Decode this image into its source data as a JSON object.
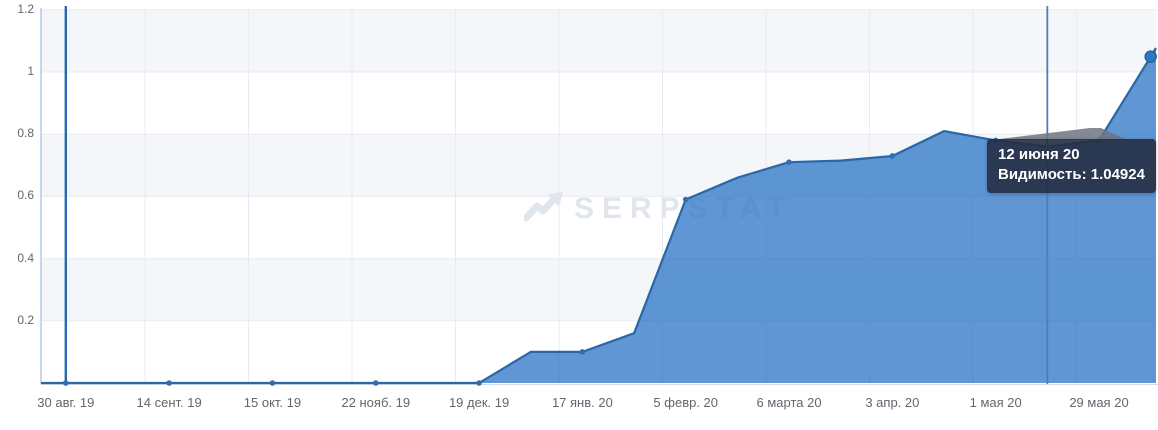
{
  "chart_data": {
    "type": "area",
    "title": "",
    "xlabel": "",
    "ylabel": "",
    "ylim": [
      0,
      1.2
    ],
    "y_tick_step": 0.2,
    "y_tick_labels": [
      "1.2",
      "1",
      "0.8",
      "0.6",
      "0.4",
      "0.2"
    ],
    "grid": true,
    "alternate_band_ranges": [
      [
        1.0,
        1.2
      ],
      [
        0.6,
        0.8
      ],
      [
        0.2,
        0.4
      ]
    ],
    "x_tick_labels": [
      "30 авг. 19",
      "14 сент. 19",
      "15 окт. 19",
      "22 нояб. 19",
      "19 дек. 19",
      "17 янв. 20",
      "5 февр. 20",
      "6 марта 20",
      "3 апр. 20",
      "1 мая 20",
      "29 мая 20"
    ],
    "series": [
      {
        "name": "Видимость",
        "values": [
          0,
          0,
          0,
          0,
          0,
          0,
          0,
          0,
          0,
          0.1,
          0.1,
          0.16,
          0.59,
          0.66,
          0.71,
          0.715,
          0.73,
          0.81,
          0.78,
          0.76,
          0.78,
          1.04924
        ],
        "labeled_indices": [
          0,
          2,
          4,
          6,
          8,
          10,
          12,
          14,
          16,
          18,
          20
        ],
        "hovered_index": 21
      }
    ],
    "hovered_point": {
      "date": "12 июня 20",
      "metric": "Видимость",
      "value": 1.04924
    },
    "vertical_marker_lines_at_index": [
      0,
      19
    ]
  },
  "tooltip": {
    "date": "12 июня 20",
    "value_line": "Видимость: 1.04924"
  },
  "watermark": {
    "text": "SERPSTAT"
  },
  "colors": {
    "series_line": "#2a67a7",
    "series_fill": "#3279c7",
    "series_fill_opacity": 0.78,
    "marker_dot": "#2f6fb0",
    "hovered_dot": "#2f78c2",
    "marker_line_left": "#2769ad",
    "crosshair_line": "#4e7fb3",
    "gridline": "#e8ebef",
    "band": "#f4f6fa",
    "y_axis_line": "#b9cfe7",
    "x_axis_line": "#d2dae4",
    "tooltip_bg": "#2e3a52",
    "axis_text": "#60676e",
    "watermark_text": "#e1e6ee"
  }
}
